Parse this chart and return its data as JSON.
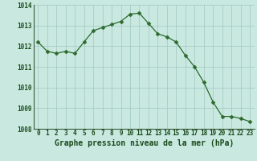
{
  "hours": [
    0,
    1,
    2,
    3,
    4,
    5,
    6,
    7,
    8,
    9,
    10,
    11,
    12,
    13,
    14,
    15,
    16,
    17,
    18,
    19,
    20,
    21,
    22,
    23
  ],
  "pressure": [
    1012.2,
    1011.75,
    1011.65,
    1011.75,
    1011.65,
    1012.2,
    1012.75,
    1012.9,
    1013.05,
    1013.2,
    1013.55,
    1013.6,
    1013.1,
    1012.6,
    1012.45,
    1012.2,
    1011.55,
    1011.0,
    1010.25,
    1009.3,
    1008.6,
    1008.6,
    1008.5,
    1008.35
  ],
  "line_color": "#2d6a2d",
  "marker": "D",
  "marker_size": 2.5,
  "bg_color": "#c8e8e0",
  "grid_color": "#a0c8c0",
  "title": "Graphe pression niveau de la mer (hPa)",
  "ylim": [
    1008,
    1014
  ],
  "yticks": [
    1008,
    1009,
    1010,
    1011,
    1012,
    1013,
    1014
  ],
  "xtick_labels": [
    "0",
    "1",
    "2",
    "3",
    "4",
    "5",
    "6",
    "7",
    "8",
    "9",
    "10",
    "11",
    "12",
    "13",
    "14",
    "15",
    "16",
    "17",
    "18",
    "19",
    "20",
    "21",
    "22",
    "23"
  ],
  "title_fontsize": 7,
  "tick_fontsize": 5.5,
  "title_color": "#1a4a1a",
  "tick_color": "#1a4a1a",
  "line_width": 0.9
}
